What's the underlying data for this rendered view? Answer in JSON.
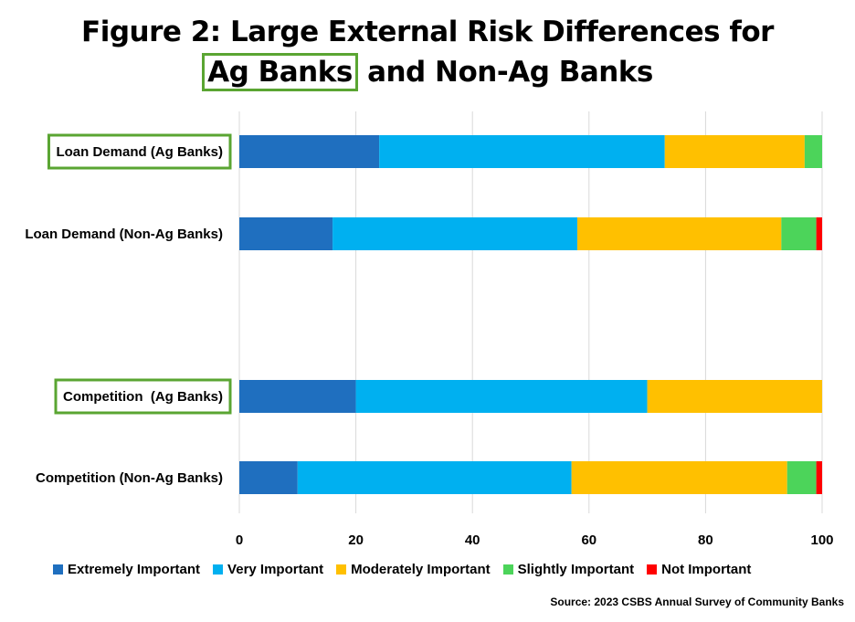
{
  "title": {
    "line1": "Figure 2: Large External Risk Differences for",
    "line2_highlight": "Ag Banks",
    "line2_rest": " and Non-Ag Banks"
  },
  "source": "Source: 2023 CSBS Annual Survey of Community Banks",
  "colors": {
    "highlight_box": "#5aa532",
    "gridline": "#d9d9d9"
  },
  "chart_data": {
    "type": "bar",
    "orientation": "horizontal",
    "stacked": true,
    "categories": [
      "Loan Demand (Ag Banks)",
      "Loan Demand (Non-Ag Banks)",
      "",
      "Competition  (Ag Banks)",
      "Competition (Non-Ag Banks)"
    ],
    "highlighted_categories": [
      0,
      3
    ],
    "series": [
      {
        "name": "Extremely Important",
        "color": "#1f6fbf",
        "values": [
          24,
          16,
          null,
          20,
          10
        ]
      },
      {
        "name": "Very Important",
        "color": "#00b0f0",
        "values": [
          49,
          42,
          null,
          50,
          47
        ]
      },
      {
        "name": "Moderately Important",
        "color": "#ffc000",
        "values": [
          24,
          35,
          null,
          30,
          37
        ]
      },
      {
        "name": "Slightly Important",
        "color": "#4cd45a",
        "values": [
          3,
          6,
          null,
          0,
          5
        ]
      },
      {
        "name": "Not Important",
        "color": "#ff0000",
        "values": [
          0,
          1,
          null,
          0,
          1
        ]
      }
    ],
    "xlim": [
      0,
      100
    ],
    "xticks": [
      "0",
      "20",
      "40",
      "60",
      "80",
      "100"
    ],
    "grid": true,
    "legend": "bottom"
  }
}
